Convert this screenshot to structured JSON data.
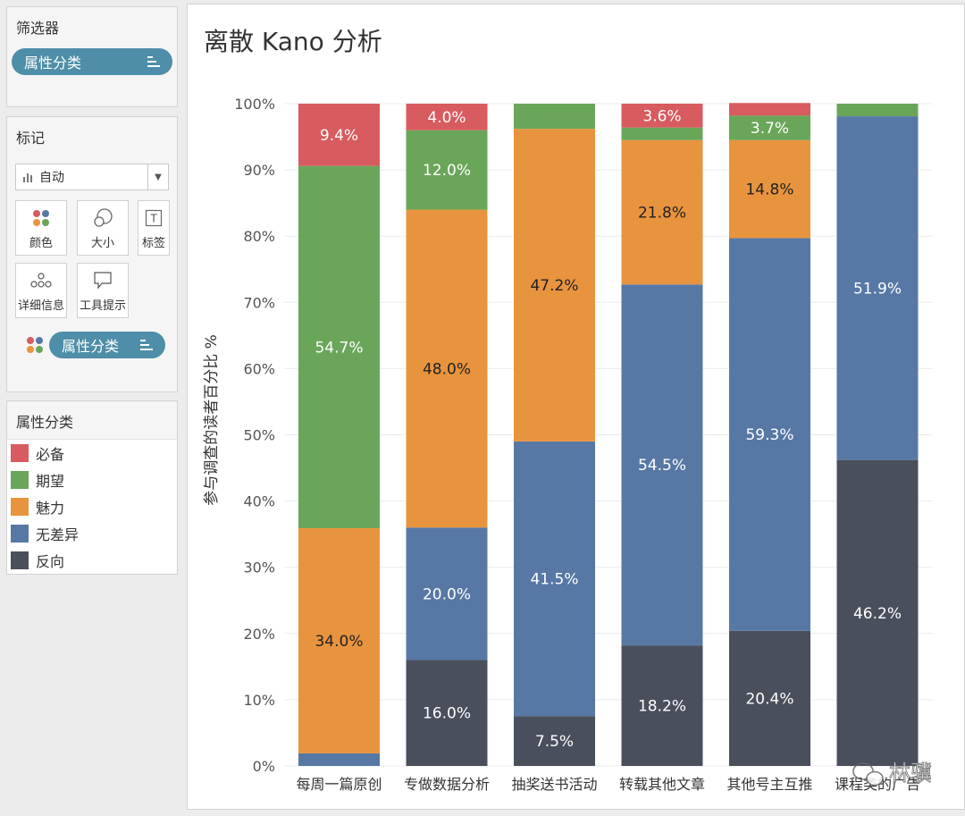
{
  "filters": {
    "title": "筛选器",
    "pill_label": "属性分类"
  },
  "marks": {
    "title": "标记",
    "dropdown_value": "自动",
    "buttons": {
      "color": "颜色",
      "size": "大小",
      "label": "标签",
      "detail": "详细信息",
      "tooltip": "工具提示"
    },
    "pill_label": "属性分类"
  },
  "legend": {
    "title": "属性分类",
    "items": [
      {
        "label": "必备",
        "color": "#d85b5f"
      },
      {
        "label": "期望",
        "color": "#6aa65a"
      },
      {
        "label": "魅力",
        "color": "#e8943f"
      },
      {
        "label": "无差异",
        "color": "#5778a4"
      },
      {
        "label": "反向",
        "color": "#4a4f5c"
      }
    ]
  },
  "chart_title": "离散 Kano 分析",
  "watermark": "林骥",
  "chart_data": {
    "type": "bar",
    "stacked": true,
    "title": "离散 Kano 分析",
    "xlabel": "",
    "ylabel": "参与调查的读者百分比 %",
    "ylim": [
      0,
      100
    ],
    "yticks": [
      "0%",
      "10%",
      "20%",
      "30%",
      "40%",
      "50%",
      "60%",
      "70%",
      "80%",
      "90%",
      "100%"
    ],
    "grid": true,
    "categories": [
      "每周一篇原创",
      "专做数据分析",
      "抽奖送书活动",
      "转载其他文章",
      "其他号主互推",
      "课程类的广告"
    ],
    "series": [
      {
        "name": "反向",
        "color": "#4a4f5c",
        "values": [
          0,
          16.0,
          7.5,
          18.2,
          20.4,
          46.2
        ],
        "labels": [
          "",
          "16.0%",
          "7.5%",
          "18.2%",
          "20.4%",
          "46.2%"
        ]
      },
      {
        "name": "无差异",
        "color": "#5778a4",
        "values": [
          1.9,
          20.0,
          41.5,
          54.5,
          59.3,
          51.9
        ],
        "labels": [
          "",
          "20.0%",
          "41.5%",
          "54.5%",
          "59.3%",
          "51.9%"
        ]
      },
      {
        "name": "魅力",
        "color": "#e8943f",
        "values": [
          34.0,
          48.0,
          47.2,
          21.8,
          14.8,
          0
        ],
        "labels": [
          "34.0%",
          "48.0%",
          "47.2%",
          "21.8%",
          "14.8%",
          ""
        ]
      },
      {
        "name": "期望",
        "color": "#6aa65a",
        "values": [
          54.7,
          12.0,
          3.8,
          1.9,
          3.7,
          1.9
        ],
        "labels": [
          "54.7%",
          "12.0%",
          "",
          "",
          "3.7%",
          ""
        ]
      },
      {
        "name": "必备",
        "color": "#d85b5f",
        "values": [
          9.4,
          4.0,
          0,
          3.6,
          1.9,
          0
        ],
        "labels": [
          "9.4%",
          "4.0%",
          "",
          "3.6%",
          "",
          ""
        ]
      }
    ]
  }
}
